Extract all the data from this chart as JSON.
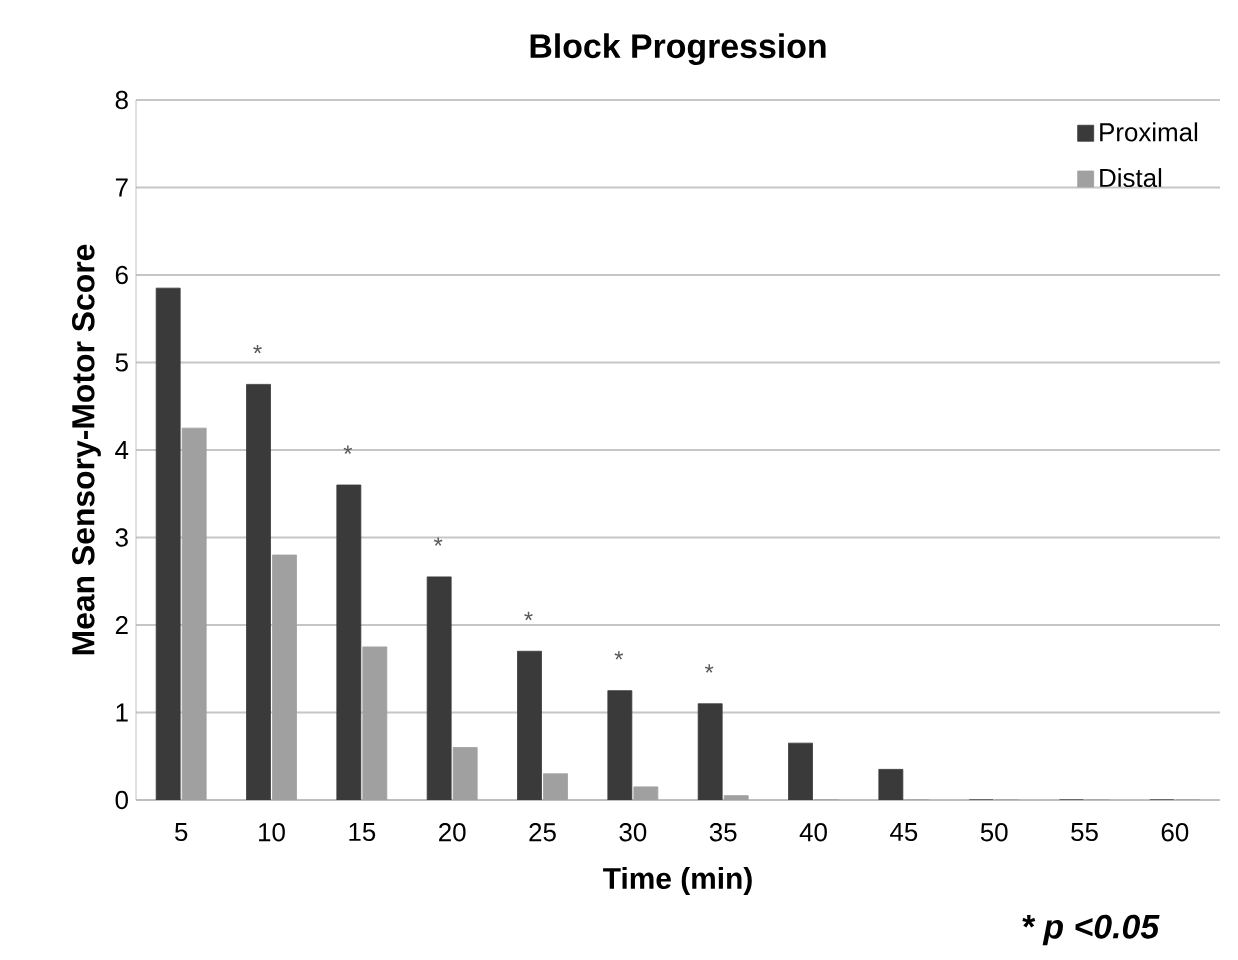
{
  "chart_data": {
    "type": "bar",
    "title": "Block Progression",
    "xlabel": "Time (min)",
    "ylabel": "Mean Sensory-Motor Score",
    "categories": [
      "5",
      "10",
      "15",
      "20",
      "25",
      "30",
      "35",
      "40",
      "45",
      "50",
      "55",
      "60"
    ],
    "series": [
      {
        "name": "Proximal",
        "color": "#3a3a3a",
        "values": [
          5.85,
          4.75,
          3.6,
          2.55,
          1.7,
          1.25,
          1.1,
          0.65,
          0.35,
          0,
          0,
          0
        ]
      },
      {
        "name": "Distal",
        "color": "#a0a0a0",
        "values": [
          4.25,
          2.8,
          1.75,
          0.6,
          0.3,
          0.15,
          0.05,
          0,
          0,
          0,
          0,
          0
        ]
      }
    ],
    "ylim": [
      0,
      8
    ],
    "yticks": [
      0,
      1,
      2,
      3,
      4,
      5,
      6,
      7,
      8
    ],
    "grid": "y",
    "legend": "top right",
    "annotations": [
      {
        "text": "*",
        "x": "10",
        "y": 4.75
      },
      {
        "text": "*",
        "x": "15",
        "y": 3.6
      },
      {
        "text": "*",
        "x": "20",
        "y": 2.55
      },
      {
        "text": "*",
        "x": "25",
        "y": 1.7
      },
      {
        "text": "*",
        "x": "30",
        "y": 1.25
      },
      {
        "text": "*",
        "x": "35",
        "y": 1.1
      },
      "* p <0.05"
    ]
  }
}
